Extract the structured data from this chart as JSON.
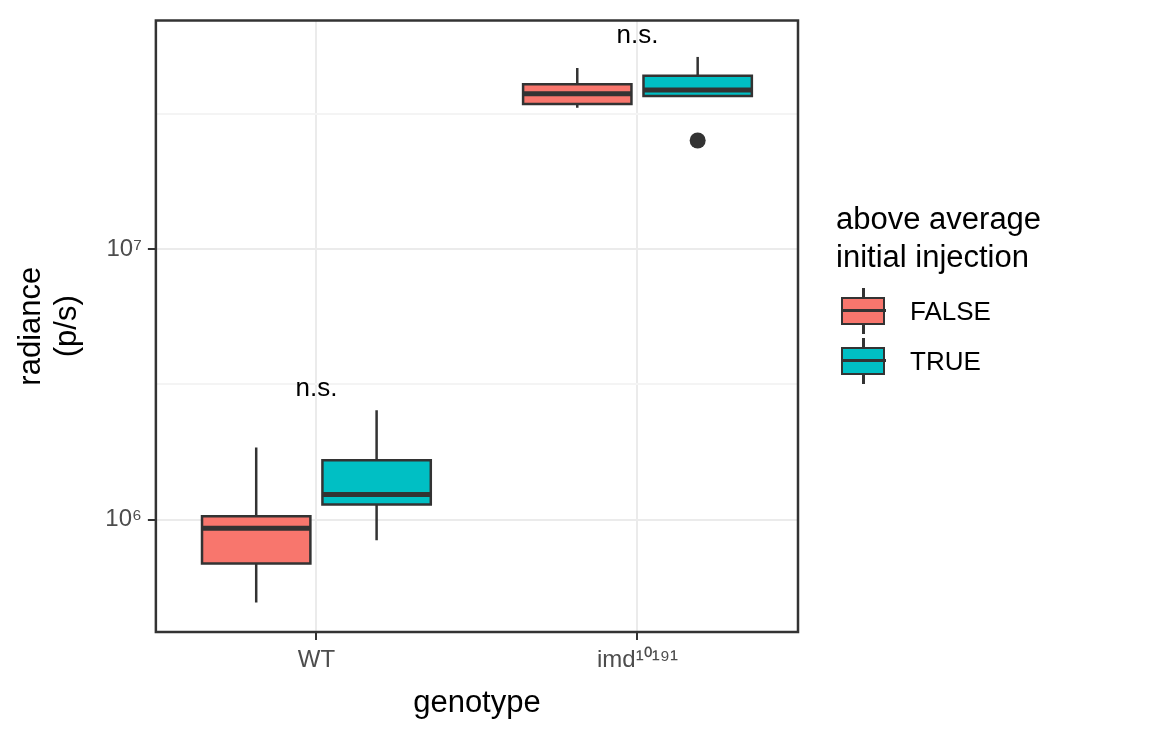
{
  "chart_data": {
    "type": "box",
    "xlabel": "genotype",
    "ylabel": "radiance\n(p/s)",
    "legend_title": "above average\ninitial injection",
    "legend": "right",
    "log": "y",
    "grid": true,
    "categories": [
      "WT",
      "imd¹⁰¹⁹¹"
    ],
    "ylim": [
      385000,
      70000000
    ],
    "yticks": [
      {
        "value": 1000000,
        "label": "10⁶"
      },
      {
        "value": 3162278,
        "label": null
      },
      {
        "value": 10000000,
        "label": "10⁷"
      },
      {
        "value": 31622777,
        "label": null
      }
    ],
    "series": [
      {
        "name": "FALSE",
        "color": "#f8766d",
        "boxes": [
          {
            "low": 495000,
            "q1": 690000,
            "median": 930000,
            "q3": 1030000,
            "high": 1850000
          },
          {
            "low": 33300000,
            "q1": 34400000,
            "median": 37500000,
            "q3": 40700000,
            "high": 46700000
          }
        ]
      },
      {
        "name": "TRUE",
        "color": "#00bfc4",
        "boxes": [
          {
            "low": 840000,
            "q1": 1140000,
            "median": 1240000,
            "q3": 1660000,
            "high": 2540000
          },
          {
            "low": 36800000,
            "q1": 36800000,
            "median": 38700000,
            "q3": 43700000,
            "high": 51300000,
            "outliers": [
              25200000
            ]
          }
        ]
      }
    ],
    "annotations": [
      "n.s.",
      "n.s."
    ]
  }
}
